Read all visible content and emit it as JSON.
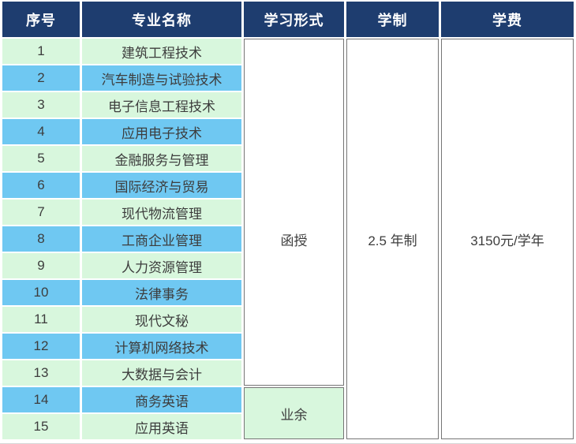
{
  "chart_data": {
    "type": "table",
    "title": "",
    "columns": [
      "序号",
      "专业名称",
      "学习形式",
      "学制",
      "学费"
    ],
    "rows": [
      [
        "1",
        "建筑工程技术"
      ],
      [
        "2",
        "汽车制造与试验技术"
      ],
      [
        "3",
        "电子信息工程技术"
      ],
      [
        "4",
        "应用电子技术"
      ],
      [
        "5",
        "金融服务与管理"
      ],
      [
        "6",
        "国际经济与贸易"
      ],
      [
        "7",
        "现代物流管理"
      ],
      [
        "8",
        "工商企业管理"
      ],
      [
        "9",
        "人力资源管理"
      ],
      [
        "10",
        "法律事务"
      ],
      [
        "11",
        "现代文秘"
      ],
      [
        "12",
        "计算机网络技术"
      ],
      [
        "13",
        "大数据与会计"
      ],
      [
        "14",
        "商务英语"
      ],
      [
        "15",
        "应用英语"
      ]
    ],
    "merged_cells": {
      "study_form": [
        {
          "label": "函授",
          "applies_to_rows": "1-13"
        },
        {
          "label": "业余",
          "applies_to_rows": "14-15"
        }
      ],
      "duration": {
        "label": "2.5 年制",
        "applies_to_rows": "1-15"
      },
      "tuition": {
        "label": "3150元/学年",
        "applies_to_rows": "1-15"
      }
    },
    "layout_hints": {
      "row_style": "alternating green/blue starting green",
      "header_style": "navy background, white bold text"
    }
  },
  "colors": {
    "header_bg": "#1e3d6f",
    "header_text": "#ffffff",
    "row_green": "#d8f7dd",
    "row_blue": "#6fc8f2",
    "merged_cell_bg": "#ffffff",
    "merged_cell_border": "#757575",
    "body_text": "#3d3d3d"
  }
}
